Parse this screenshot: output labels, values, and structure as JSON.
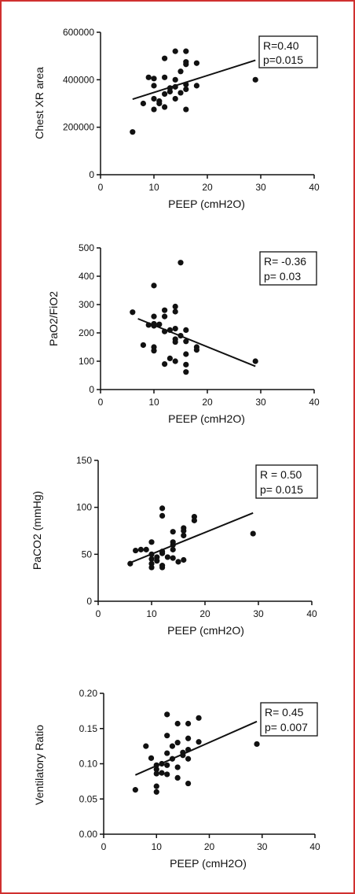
{
  "chart_data": [
    {
      "type": "scatter",
      "ylabel": "Chest XR area",
      "xlabel": "PEEP (cmH2O)",
      "xlim": [
        0,
        40
      ],
      "ylim": [
        0,
        600000
      ],
      "x_ticks": [
        0,
        10,
        20,
        30,
        40
      ],
      "y_ticks": [
        0,
        200000,
        400000,
        600000
      ],
      "x_tick_labels": [
        "0",
        "10",
        "20",
        "30",
        "40"
      ],
      "y_tick_labels": [
        "0",
        "200000",
        "400000",
        "600000"
      ],
      "stats": [
        "R=0.40",
        "p=0.015"
      ],
      "regression": {
        "x": [
          6,
          29
        ],
        "y": [
          318000,
          482000
        ]
      },
      "points": [
        {
          "x": 6,
          "y": 180000
        },
        {
          "x": 8,
          "y": 300000
        },
        {
          "x": 9,
          "y": 410000
        },
        {
          "x": 10,
          "y": 405000
        },
        {
          "x": 10,
          "y": 375000
        },
        {
          "x": 10,
          "y": 320000
        },
        {
          "x": 10,
          "y": 275000
        },
        {
          "x": 11,
          "y": 310000
        },
        {
          "x": 11,
          "y": 300000
        },
        {
          "x": 12,
          "y": 490000
        },
        {
          "x": 12,
          "y": 410000
        },
        {
          "x": 12,
          "y": 340000
        },
        {
          "x": 12,
          "y": 285000
        },
        {
          "x": 13,
          "y": 365000
        },
        {
          "x": 13,
          "y": 350000
        },
        {
          "x": 14,
          "y": 520000
        },
        {
          "x": 14,
          "y": 400000
        },
        {
          "x": 14,
          "y": 370000
        },
        {
          "x": 14,
          "y": 320000
        },
        {
          "x": 15,
          "y": 435000
        },
        {
          "x": 15,
          "y": 345000
        },
        {
          "x": 16,
          "y": 520000
        },
        {
          "x": 16,
          "y": 475000
        },
        {
          "x": 16,
          "y": 465000
        },
        {
          "x": 16,
          "y": 380000
        },
        {
          "x": 16,
          "y": 360000
        },
        {
          "x": 16,
          "y": 275000
        },
        {
          "x": 18,
          "y": 470000
        },
        {
          "x": 18,
          "y": 375000
        },
        {
          "x": 29,
          "y": 400000
        }
      ]
    },
    {
      "type": "scatter",
      "ylabel": "PaO2/FiO2",
      "xlabel": "PEEP (cmH2O)",
      "xlim": [
        0,
        40
      ],
      "ylim": [
        0,
        500
      ],
      "x_ticks": [
        0,
        10,
        20,
        30,
        40
      ],
      "y_ticks": [
        0,
        100,
        200,
        300,
        400,
        500
      ],
      "x_tick_labels": [
        "0",
        "10",
        "20",
        "30",
        "40"
      ],
      "y_tick_labels": [
        "0",
        "100",
        "200",
        "300",
        "400",
        "500"
      ],
      "stats": [
        "R= -0.36",
        "p= 0.03"
      ],
      "regression": {
        "x": [
          7,
          29
        ],
        "y": [
          250,
          82
        ]
      },
      "points": [
        {
          "x": 6,
          "y": 273
        },
        {
          "x": 8,
          "y": 157
        },
        {
          "x": 9,
          "y": 228
        },
        {
          "x": 10,
          "y": 367
        },
        {
          "x": 10,
          "y": 258
        },
        {
          "x": 10,
          "y": 232
        },
        {
          "x": 10,
          "y": 225
        },
        {
          "x": 10,
          "y": 150
        },
        {
          "x": 10,
          "y": 137
        },
        {
          "x": 11,
          "y": 230
        },
        {
          "x": 12,
          "y": 280
        },
        {
          "x": 12,
          "y": 258
        },
        {
          "x": 12,
          "y": 205
        },
        {
          "x": 12,
          "y": 90
        },
        {
          "x": 13,
          "y": 110
        },
        {
          "x": 13,
          "y": 210
        },
        {
          "x": 14,
          "y": 293
        },
        {
          "x": 14,
          "y": 275
        },
        {
          "x": 14,
          "y": 215
        },
        {
          "x": 14,
          "y": 178
        },
        {
          "x": 14,
          "y": 168
        },
        {
          "x": 14,
          "y": 100
        },
        {
          "x": 15,
          "y": 448
        },
        {
          "x": 15,
          "y": 190
        },
        {
          "x": 16,
          "y": 210
        },
        {
          "x": 16,
          "y": 170
        },
        {
          "x": 16,
          "y": 125
        },
        {
          "x": 16,
          "y": 88
        },
        {
          "x": 16,
          "y": 62
        },
        {
          "x": 18,
          "y": 150
        },
        {
          "x": 18,
          "y": 140
        },
        {
          "x": 29,
          "y": 100
        }
      ]
    },
    {
      "type": "scatter",
      "ylabel": "PaCO2 (mmHg)",
      "xlabel": "PEEP (cmH2O)",
      "xlim": [
        0,
        40
      ],
      "ylim": [
        0,
        150
      ],
      "x_ticks": [
        0,
        10,
        20,
        30,
        40
      ],
      "y_ticks": [
        0,
        50,
        100,
        150
      ],
      "x_tick_labels": [
        "0",
        "10",
        "20",
        "30",
        "40"
      ],
      "y_tick_labels": [
        "0",
        "50",
        "100",
        "150"
      ],
      "stats": [
        "R = 0.50",
        "p= 0.015"
      ],
      "regression": {
        "x": [
          6,
          29
        ],
        "y": [
          41,
          94
        ]
      },
      "points": [
        {
          "x": 6,
          "y": 40
        },
        {
          "x": 7,
          "y": 54
        },
        {
          "x": 8,
          "y": 55
        },
        {
          "x": 9,
          "y": 55
        },
        {
          "x": 10,
          "y": 63
        },
        {
          "x": 10,
          "y": 50
        },
        {
          "x": 10,
          "y": 45
        },
        {
          "x": 10,
          "y": 40
        },
        {
          "x": 10,
          "y": 36
        },
        {
          "x": 11,
          "y": 47
        },
        {
          "x": 11,
          "y": 43
        },
        {
          "x": 12,
          "y": 99
        },
        {
          "x": 12,
          "y": 91
        },
        {
          "x": 12,
          "y": 53
        },
        {
          "x": 12,
          "y": 51
        },
        {
          "x": 12,
          "y": 38
        },
        {
          "x": 12,
          "y": 36
        },
        {
          "x": 13,
          "y": 47
        },
        {
          "x": 14,
          "y": 74
        },
        {
          "x": 14,
          "y": 63
        },
        {
          "x": 14,
          "y": 60
        },
        {
          "x": 14,
          "y": 55
        },
        {
          "x": 14,
          "y": 46
        },
        {
          "x": 15,
          "y": 42
        },
        {
          "x": 16,
          "y": 78
        },
        {
          "x": 16,
          "y": 75
        },
        {
          "x": 16,
          "y": 70
        },
        {
          "x": 16,
          "y": 44
        },
        {
          "x": 18,
          "y": 90
        },
        {
          "x": 18,
          "y": 86
        },
        {
          "x": 29,
          "y": 72
        }
      ]
    },
    {
      "type": "scatter",
      "ylabel": "Ventilatory Ratio",
      "xlabel": "PEEP (cmH2O)",
      "xlim": [
        0,
        40
      ],
      "ylim": [
        0,
        0.2
      ],
      "x_ticks": [
        0,
        10,
        20,
        30,
        40
      ],
      "y_ticks": [
        0,
        0.05,
        0.1,
        0.15,
        0.2
      ],
      "x_tick_labels": [
        "0",
        "10",
        "20",
        "30",
        "40"
      ],
      "y_tick_labels": [
        "0.00",
        "0.05",
        "0.10",
        "0.15",
        "0.20"
      ],
      "stats": [
        "R= 0.45",
        "p= 0.007"
      ],
      "regression": {
        "x": [
          6,
          29
        ],
        "y": [
          0.084,
          0.16
        ]
      },
      "points": [
        {
          "x": 6,
          "y": 0.063
        },
        {
          "x": 8,
          "y": 0.125
        },
        {
          "x": 9,
          "y": 0.108
        },
        {
          "x": 10,
          "y": 0.098
        },
        {
          "x": 10,
          "y": 0.092
        },
        {
          "x": 10,
          "y": 0.086
        },
        {
          "x": 10,
          "y": 0.068
        },
        {
          "x": 10,
          "y": 0.06
        },
        {
          "x": 11,
          "y": 0.087
        },
        {
          "x": 11,
          "y": 0.1
        },
        {
          "x": 12,
          "y": 0.17
        },
        {
          "x": 12,
          "y": 0.14
        },
        {
          "x": 12,
          "y": 0.115
        },
        {
          "x": 12,
          "y": 0.098
        },
        {
          "x": 12,
          "y": 0.085
        },
        {
          "x": 13,
          "y": 0.125
        },
        {
          "x": 13,
          "y": 0.107
        },
        {
          "x": 14,
          "y": 0.157
        },
        {
          "x": 14,
          "y": 0.13
        },
        {
          "x": 14,
          "y": 0.095
        },
        {
          "x": 14,
          "y": 0.08
        },
        {
          "x": 15,
          "y": 0.116
        },
        {
          "x": 15,
          "y": 0.112
        },
        {
          "x": 16,
          "y": 0.157
        },
        {
          "x": 16,
          "y": 0.136
        },
        {
          "x": 16,
          "y": 0.12
        },
        {
          "x": 16,
          "y": 0.107
        },
        {
          "x": 16,
          "y": 0.072
        },
        {
          "x": 18,
          "y": 0.165
        },
        {
          "x": 18,
          "y": 0.131
        },
        {
          "x": 29,
          "y": 0.128
        }
      ]
    }
  ]
}
